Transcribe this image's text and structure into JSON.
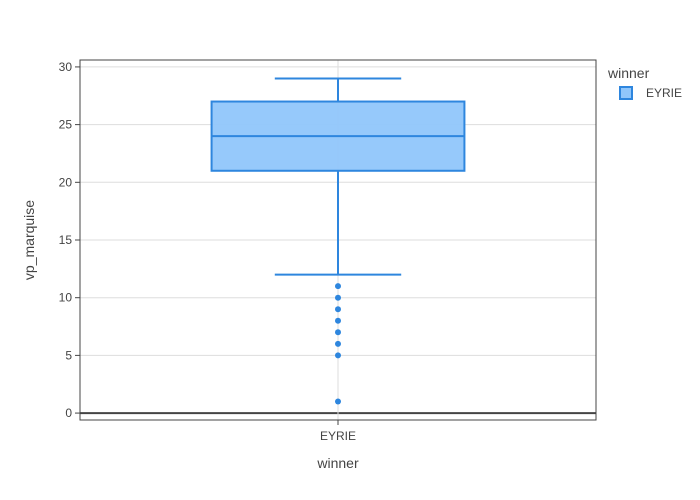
{
  "chart_data": {
    "type": "box",
    "xlabel": "winner",
    "ylabel": "vp_marquise",
    "ylim": [
      -0.6,
      30.6
    ],
    "yticks": [
      0,
      5,
      10,
      15,
      20,
      25,
      30
    ],
    "grid": true,
    "legend": {
      "title": "winner",
      "placement": "top-right"
    },
    "categories": [
      "EYRIE"
    ],
    "series": [
      {
        "name": "EYRIE",
        "color": "#2e86de",
        "fill": "#90c6fb",
        "lower_fence": 12,
        "q1": 21,
        "median": 24,
        "q3": 27,
        "upper_fence": 29,
        "outliers": [
          11,
          10,
          9,
          8,
          7,
          6,
          5,
          1
        ]
      }
    ]
  }
}
